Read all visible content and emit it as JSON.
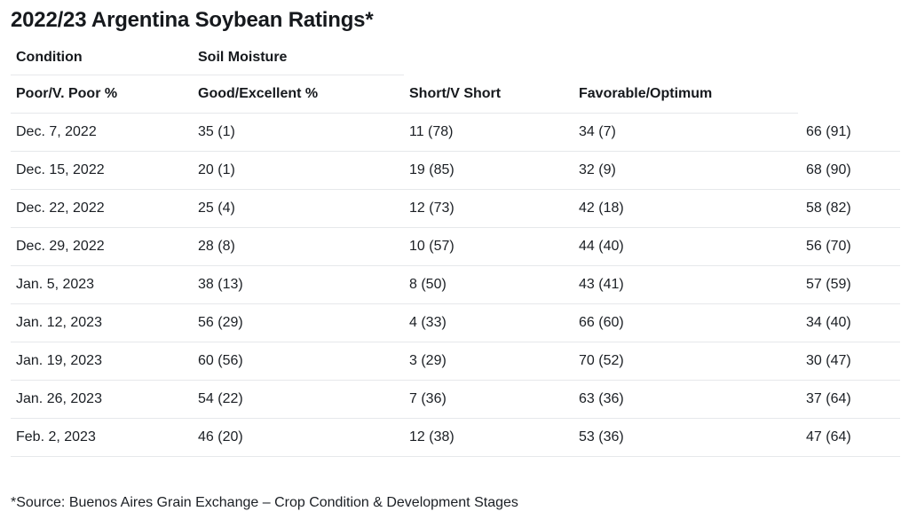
{
  "page": {
    "title": "2022/23 Argentina Soybean Ratings*",
    "footnote": "*Source: Buenos Aires Grain Exchange – Crop Condition & Development Stages"
  },
  "chart_data": {
    "type": "table",
    "title": "2022/23 Argentina Soybean Ratings*",
    "group_headers": [
      "Condition",
      "Soil Moisture"
    ],
    "columns": [
      "Poor/V. Poor %",
      "Good/Excellent %",
      "Short/V Short",
      "Favorable/Optimum"
    ],
    "rows": [
      [
        "Dec. 7, 2022",
        "35 (1)",
        "11 (78)",
        "34 (7)",
        "66 (91)"
      ],
      [
        "Dec. 15, 2022",
        "20 (1)",
        "19 (85)",
        "32 (9)",
        "68 (90)"
      ],
      [
        "Dec. 22, 2022",
        "25 (4)",
        "12 (73)",
        "42 (18)",
        "58 (82)"
      ],
      [
        "Dec. 29, 2022",
        "28 (8)",
        "10 (57)",
        "44 (40)",
        "56 (70)"
      ],
      [
        "Jan. 5, 2023",
        "38 (13)",
        "8 (50)",
        "43 (41)",
        "57 (59)"
      ],
      [
        "Jan. 12, 2023",
        "56 (29)",
        "4 (33)",
        "66 (60)",
        "34 (40)"
      ],
      [
        "Jan. 19, 2023",
        "60 (56)",
        "3 (29)",
        "70 (52)",
        "30 (47)"
      ],
      [
        "Jan. 26, 2023",
        "54 (22)",
        "7 (36)",
        "63 (36)",
        "37 (64)"
      ],
      [
        "Feb. 2, 2023",
        "46 (20)",
        "12 (38)",
        "53 (36)",
        "47 (64)"
      ]
    ],
    "footnote": "*Source: Buenos Aires Grain Exchange – Crop Condition & Development Stages",
    "colors": {
      "text": "#1b1f24",
      "divider": "#e6e8eb",
      "background": "#ffffff"
    },
    "layout": {
      "grid": "horizontal-row-dividers",
      "header_rows": 2,
      "data_rows": 9
    }
  }
}
